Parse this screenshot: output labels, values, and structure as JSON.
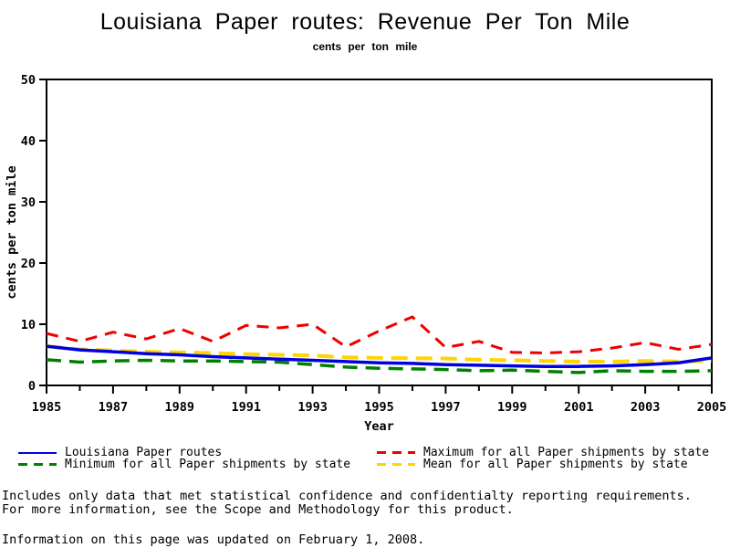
{
  "header": {
    "title": "Louisiana Paper routes: Revenue Per Ton Mile",
    "subtitle": "cents per ton mile"
  },
  "chart_data": {
    "type": "line",
    "title": "Louisiana Paper routes: Revenue Per Ton Mile",
    "subtitle": "cents per ton mile",
    "xlabel": "Year",
    "ylabel": "cents per ton mile",
    "xlim": [
      1985,
      2005
    ],
    "ylim": [
      0,
      50
    ],
    "x_major_tick_step": 2,
    "x_minor_tick_step": 1,
    "y_tick_step": 10,
    "grid": false,
    "frame": true,
    "legend_position": "bottom-two-column",
    "x": [
      1985,
      1986,
      1987,
      1988,
      1989,
      1990,
      1991,
      1992,
      1993,
      1994,
      1995,
      1996,
      1997,
      1998,
      1999,
      2000,
      2001,
      2002,
      2003,
      2004,
      2005
    ],
    "series": [
      {
        "id": "mean",
        "name": "Mean for all Paper shipments by state",
        "color": "#ffd400",
        "style": "dashed",
        "dash": "18 9",
        "width": 4,
        "values": [
          6.4,
          5.9,
          5.7,
          5.5,
          5.4,
          5.3,
          5.1,
          5.0,
          4.9,
          4.6,
          4.5,
          4.45,
          4.4,
          4.2,
          4.1,
          4.0,
          3.9,
          3.9,
          4.0,
          3.9,
          4.0
        ]
      },
      {
        "id": "minimum",
        "name": "Minimum for all Paper shipments by state",
        "color": "#008000",
        "style": "dashed",
        "dash": "16 9",
        "width": 3.5,
        "values": [
          4.2,
          3.8,
          4.0,
          4.1,
          4.0,
          4.0,
          3.9,
          3.8,
          3.4,
          3.0,
          2.8,
          2.7,
          2.6,
          2.4,
          2.5,
          2.3,
          2.1,
          2.4,
          2.3,
          2.3,
          2.4
        ]
      },
      {
        "id": "maximum",
        "name": "Maximum for all Paper shipments by state",
        "color": "#ee0000",
        "style": "dashed",
        "dash": "13 9",
        "width": 3,
        "values": [
          8.5,
          7.2,
          8.7,
          7.6,
          9.3,
          7.2,
          9.8,
          9.4,
          10.0,
          6.3,
          8.9,
          11.2,
          6.2,
          7.2,
          5.4,
          5.3,
          5.5,
          6.1,
          7.0,
          5.9,
          6.7
        ]
      },
      {
        "id": "louisiana",
        "name": "Louisiana Paper routes",
        "color": "#0000e0",
        "style": "solid",
        "dash": "",
        "width": 3.5,
        "values": [
          6.4,
          5.8,
          5.5,
          5.2,
          5.0,
          4.7,
          4.5,
          4.3,
          4.1,
          3.9,
          3.7,
          3.6,
          3.4,
          3.3,
          3.2,
          3.1,
          3.1,
          3.2,
          3.4,
          3.7,
          4.5
        ]
      }
    ]
  },
  "legend": {
    "entries": [
      {
        "label": "Louisiana Paper routes",
        "color": "#0000e0",
        "style": "solid"
      },
      {
        "label": "Maximum for all Paper shipments by state",
        "color": "#ee0000",
        "style": "dashed"
      },
      {
        "label": "Minimum for all Paper shipments by state",
        "color": "#008000",
        "style": "dashed"
      },
      {
        "label": "Mean for all Paper shipments by state",
        "color": "#ffd400",
        "style": "dashed"
      }
    ]
  },
  "footer": {
    "line1": "Includes only data that met statistical confidence and confidentialty reporting requirements.",
    "line2": "For more information, see the Scope and Methodology for this product.",
    "updated": "Information on this page was updated on February 1, 2008."
  }
}
